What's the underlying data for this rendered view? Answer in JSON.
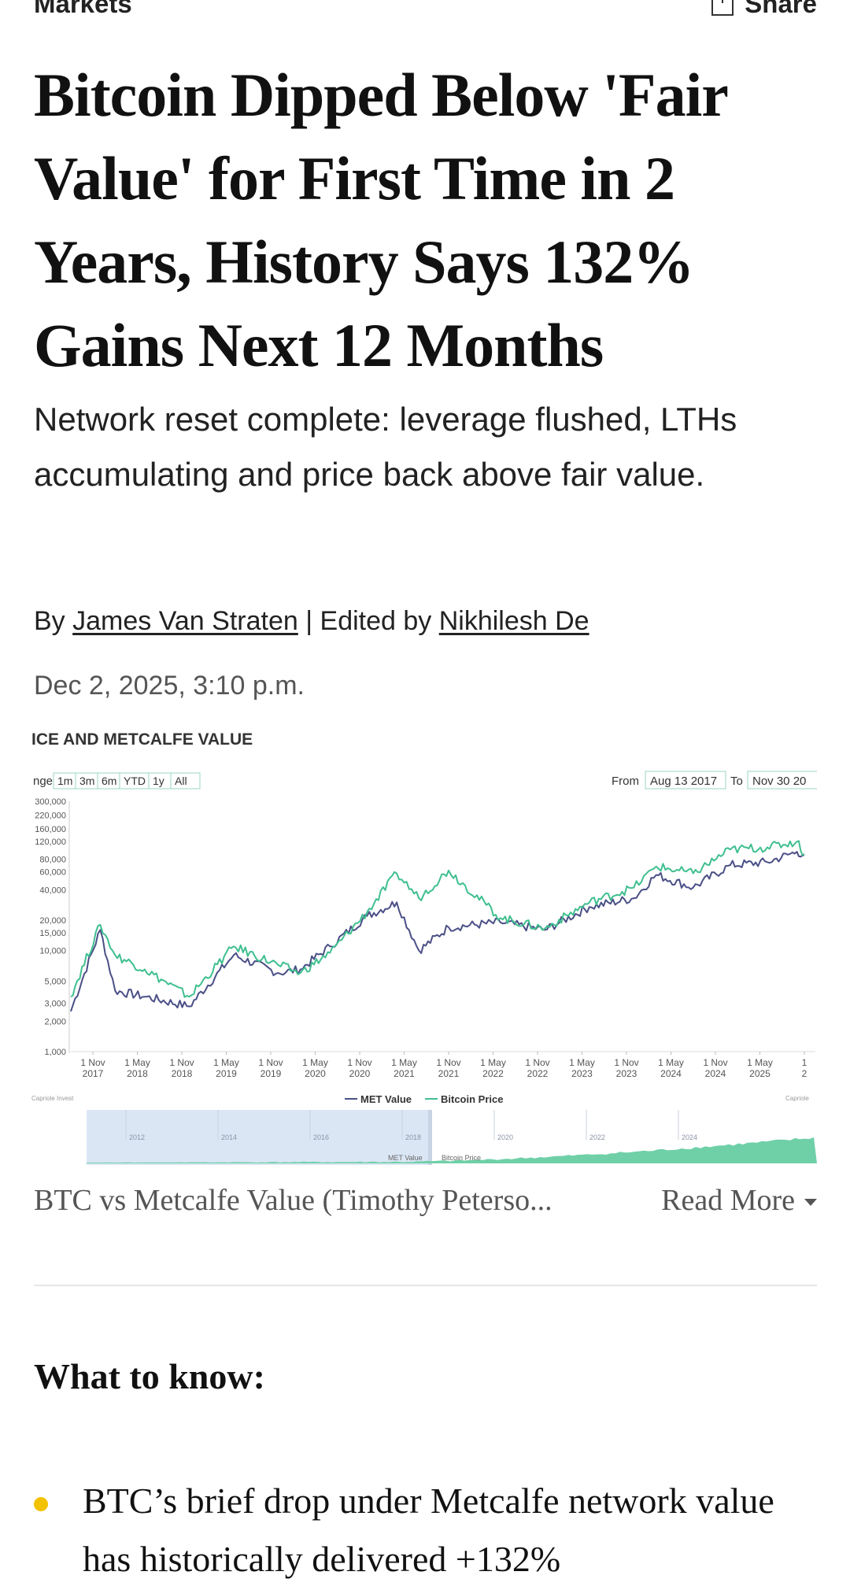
{
  "header": {
    "section": "Markets",
    "share_label": "Share"
  },
  "article": {
    "headline": "Bitcoin Dipped Below 'Fair Value' for First Time in 2 Years, History Says 132% Gains Next 12 Months",
    "dek": "Network reset complete: leverage flushed, LTHs accumulating and price back above fair value.",
    "byline_prefix": "By",
    "author": "James Van Straten",
    "separator": "| Edited by",
    "editor": "Nikhilesh De",
    "date": "Dec 2, 2025, 3:10 p.m.",
    "caption": "BTC vs Metcalfe Value (Timothy Peterso...",
    "read_more": "Read More",
    "what_to_know_heading": "What to know:",
    "bullets": [
      "BTC’s brief drop under Metcalfe network value has historically delivered +132%"
    ]
  },
  "chart": {
    "title_fragment": "ICE AND METCALFE VALUE",
    "range_label": "nge",
    "range_buttons": [
      "1m",
      "3m",
      "6m",
      "YTD",
      "1y",
      "All"
    ],
    "from_label": "From",
    "from_value": "Aug 13 2017",
    "to_label": "To",
    "to_value": "Nov 30 20",
    "navigator_years": [
      "2012",
      "2014",
      "2016",
      "2018",
      "2020",
      "2022",
      "2024"
    ],
    "navigator_legend": [
      "MET Value",
      "Bitcoin Price"
    ],
    "credit_left": "Capriole Invest",
    "credit_right": "Capriole"
  },
  "chart_data": {
    "type": "line",
    "title": "",
    "xlabel": "",
    "ylabel": "",
    "y_scale": "log",
    "ylim": [
      1000,
      300000
    ],
    "y_ticks": [
      "300,000",
      "220,000",
      "160,000",
      "120,000",
      "80,000",
      "60,000",
      "40,000",
      "20,000",
      "15,000",
      "10,000",
      "5,000",
      "3,000",
      "2,000",
      "1,000"
    ],
    "x_ticks": [
      [
        "1 Nov",
        "2017"
      ],
      [
        "1 May",
        "2018"
      ],
      [
        "1 Nov",
        "2018"
      ],
      [
        "1 May",
        "2019"
      ],
      [
        "1 Nov",
        "2019"
      ],
      [
        "1 May",
        "2020"
      ],
      [
        "1 Nov",
        "2020"
      ],
      [
        "1 May",
        "2021"
      ],
      [
        "1 Nov",
        "2021"
      ],
      [
        "1 May",
        "2022"
      ],
      [
        "1 Nov",
        "2022"
      ],
      [
        "1 May",
        "2023"
      ],
      [
        "1 Nov",
        "2023"
      ],
      [
        "1 May",
        "2024"
      ],
      [
        "1 Nov",
        "2024"
      ],
      [
        "1 May",
        "2025"
      ],
      [
        "1",
        "2"
      ]
    ],
    "legend_position": "bottom",
    "x": [
      "2017-08",
      "2017-12",
      "2018-02",
      "2018-06",
      "2018-12",
      "2019-06",
      "2019-12",
      "2020-03",
      "2020-07",
      "2020-12",
      "2021-04",
      "2021-07",
      "2021-11",
      "2022-06",
      "2022-12",
      "2023-06",
      "2023-12",
      "2024-03",
      "2024-08",
      "2025-01",
      "2025-06",
      "2025-10",
      "2025-11"
    ],
    "series": [
      {
        "name": "MET Value",
        "color": "#4a4f86",
        "values": [
          2500,
          16000,
          4000,
          3500,
          2800,
          9000,
          6000,
          6500,
          11000,
          22000,
          30000,
          10000,
          17000,
          19000,
          16000,
          27000,
          33000,
          56000,
          42000,
          70000,
          75000,
          95000,
          88000
        ]
      },
      {
        "name": "Bitcoin Price",
        "color": "#3fbf8f",
        "values": [
          3500,
          18000,
          9000,
          6500,
          3500,
          11000,
          7200,
          6000,
          9500,
          24000,
          58000,
          33000,
          62000,
          21000,
          16500,
          30000,
          42000,
          68000,
          58000,
          100000,
          105000,
          120000,
          90000
        ]
      }
    ]
  }
}
